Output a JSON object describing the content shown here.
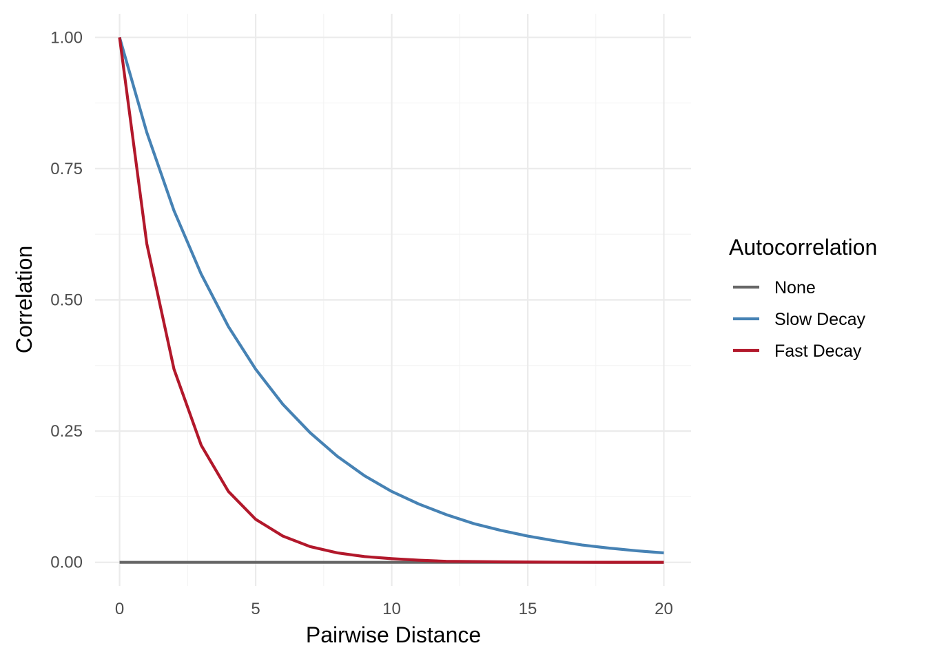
{
  "chart_data": {
    "type": "line",
    "title": "",
    "xlabel": "Pairwise Distance",
    "ylabel": "Correlation",
    "xlim": [
      -0.9,
      21
    ],
    "ylim": [
      -0.045,
      1.045
    ],
    "x_ticks": [
      0,
      5,
      10,
      15,
      20
    ],
    "x_tick_labels": [
      "0",
      "5",
      "10",
      "15",
      "20"
    ],
    "y_ticks": [
      0,
      0.25,
      0.5,
      0.75,
      1
    ],
    "y_tick_labels": [
      "0.00",
      "0.25",
      "0.50",
      "0.75",
      "1.00"
    ],
    "grid": true,
    "legend": {
      "title": "Autocorrelation",
      "position": "right"
    },
    "x": [
      0,
      1,
      2,
      3,
      4,
      5,
      6,
      7,
      8,
      9,
      10,
      11,
      12,
      13,
      14,
      15,
      16,
      17,
      18,
      19,
      20
    ],
    "series": [
      {
        "name": "None",
        "color": "#666666",
        "values": [
          0,
          0,
          0,
          0,
          0,
          0,
          0,
          0,
          0,
          0,
          0,
          0,
          0,
          0,
          0,
          0,
          0,
          0,
          0,
          0,
          0
        ]
      },
      {
        "name": "Slow Decay",
        "color": "#4682b4",
        "values": [
          1.0,
          0.819,
          0.67,
          0.549,
          0.449,
          0.368,
          0.301,
          0.247,
          0.202,
          0.165,
          0.135,
          0.111,
          0.091,
          0.074,
          0.061,
          0.05,
          0.041,
          0.033,
          0.027,
          0.022,
          0.018
        ]
      },
      {
        "name": "Fast Decay",
        "color": "#b2182b",
        "values": [
          1.0,
          0.607,
          0.368,
          0.223,
          0.135,
          0.082,
          0.05,
          0.03,
          0.018,
          0.011,
          0.007,
          0.004,
          0.002,
          0.0015,
          0.0009,
          0.0006,
          0.0003,
          0.0002,
          0.0001,
          0.0001,
          0.0
        ]
      }
    ]
  }
}
